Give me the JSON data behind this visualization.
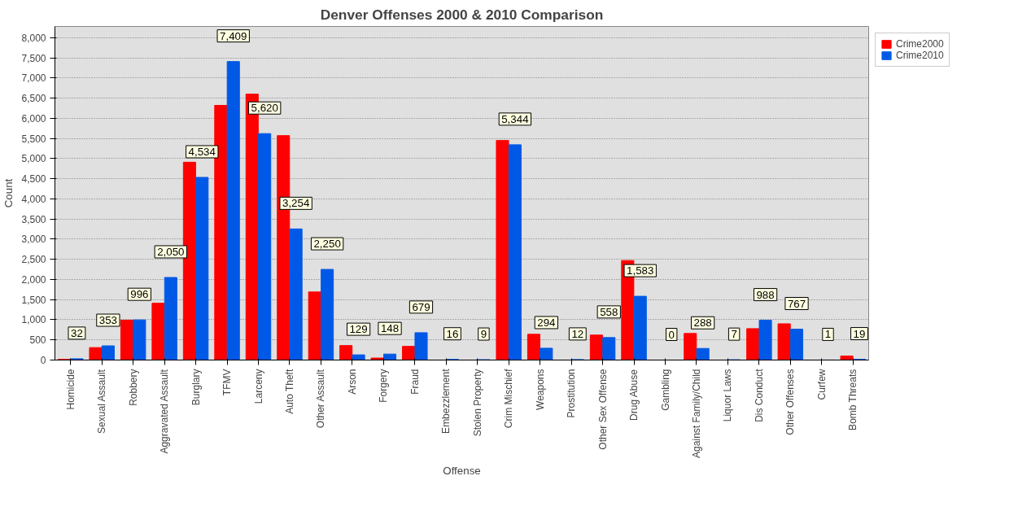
{
  "chart_data": {
    "type": "bar",
    "title": "Denver Offenses 2000 & 2010 Comparison",
    "xlabel": "Offense",
    "ylabel": "Count",
    "categories": [
      "Homicide",
      "Sexual Assault",
      "Robbery",
      "Aggravated Assault",
      "Burglary",
      "TFMV",
      "Larceny",
      "Auto Theft",
      "Other Assault",
      "Arson",
      "Forgery",
      "Fraud",
      "Embezzlement",
      "Stolen Property",
      "Crim Mischief",
      "Weapons",
      "Prostitution",
      "Other Sex Offense",
      "Drug Abuse",
      "Gambling",
      "Against Family/Child",
      "Liquor Laws",
      "Dis Conduct",
      "Other Offenses",
      "Curfew",
      "Bomb Threats"
    ],
    "series": [
      {
        "name": "Crime2000",
        "color": "#ff0000",
        "values": [
          20,
          310,
          990,
          1410,
          4910,
          6320,
          6600,
          5570,
          1690,
          360,
          50,
          340,
          0,
          0,
          5450,
          640,
          0,
          620,
          2470,
          0,
          660,
          0,
          780,
          900,
          0,
          100
        ]
      },
      {
        "name": "Crime2010",
        "color": "#0059e6",
        "values": [
          32,
          353,
          996,
          2050,
          4534,
          7409,
          5620,
          3254,
          2250,
          129,
          148,
          679,
          16,
          9,
          5344,
          294,
          12,
          558,
          1583,
          0,
          288,
          7,
          988,
          767,
          1,
          19
        ],
        "value_labels": [
          "32",
          "353",
          "996",
          "2,050",
          "4,534",
          "7,409",
          "5,620",
          "3,254",
          "2,250",
          "129",
          "148",
          "679",
          "16",
          "9",
          "5,344",
          "294",
          "12",
          "558",
          "1,583",
          "0",
          "288",
          "7",
          "988",
          "767",
          "1",
          "19"
        ]
      }
    ],
    "ylim": [
      0,
      8280
    ],
    "yticks": [
      0,
      {
        "value": 500,
        "label": "500"
      },
      {
        "value": 1000,
        "label": "1,000"
      },
      {
        "value": 1500,
        "label": "1,500"
      },
      {
        "value": 2000,
        "label": "2,000"
      },
      {
        "value": 2500,
        "label": "2,500"
      },
      {
        "value": 3000,
        "label": "3,000"
      },
      {
        "value": 3500,
        "label": "3,500"
      },
      {
        "value": 4000,
        "label": "4,000"
      },
      {
        "value": 4500,
        "label": "4,500"
      },
      {
        "value": 5000,
        "label": "5,000"
      },
      {
        "value": 5500,
        "label": "5,500"
      },
      {
        "value": 6000,
        "label": "6,000"
      },
      {
        "value": 6500,
        "label": "6,500"
      },
      {
        "value": 7000,
        "label": "7,000"
      },
      {
        "value": 7500,
        "label": "7,500"
      },
      {
        "value": 8000,
        "label": "8,000"
      }
    ],
    "grid": "y",
    "legend": "top right"
  }
}
